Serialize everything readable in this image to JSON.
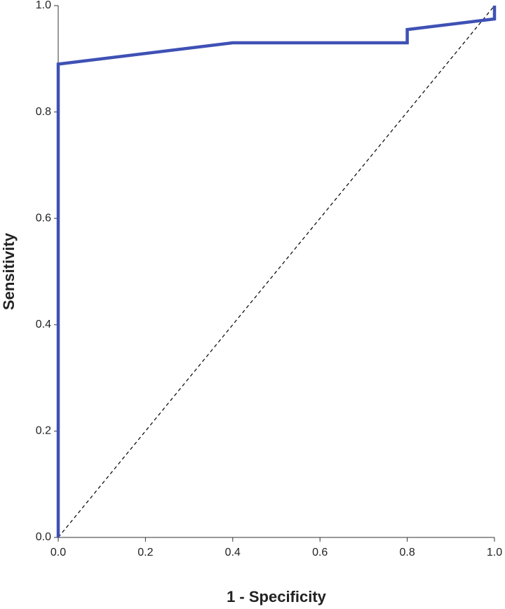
{
  "chart_data": {
    "type": "line",
    "x_label": "1 - Specificity",
    "y_label": "Sensitivity",
    "series": [
      {
        "color": "#3f51b5",
        "dashed": false,
        "x": [
          0,
          0,
          0.4,
          0.8,
          0.8,
          1.0,
          1.0
        ],
        "values": [
          0,
          0.89,
          0.93,
          0.93,
          0.955,
          0.975,
          1.0
        ]
      },
      {
        "color": "#000000",
        "dashed": true,
        "x": [
          0,
          1.0
        ],
        "values": [
          0,
          1.0
        ]
      }
    ],
    "xlim": [
      0,
      1.0
    ],
    "ylim": [
      0,
      1.0
    ],
    "xticks": [
      {
        "value": 0,
        "label": "0.0"
      },
      0.2,
      0.4,
      0.6,
      0.8,
      {
        "value": 1.0,
        "label": "1.0"
      }
    ],
    "yticks": [
      {
        "value": 0,
        "label": "0.0"
      },
      0.2,
      0.4,
      0.6,
      0.8,
      {
        "value": 1.0,
        "label": "1.0"
      }
    ]
  }
}
